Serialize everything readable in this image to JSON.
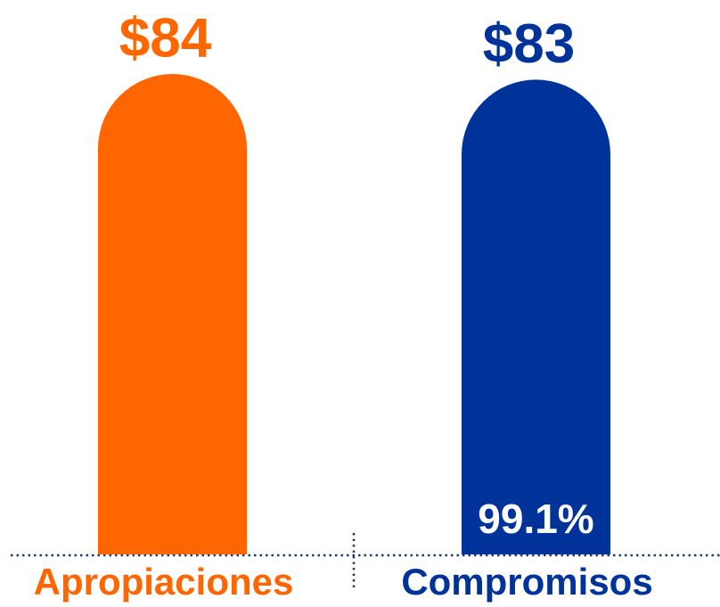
{
  "chart_data": {
    "type": "bar",
    "categories": [
      "Apropiaciones",
      "Compromisos"
    ],
    "values": [
      84,
      83
    ],
    "value_labels": [
      "$84",
      "$83"
    ],
    "colors": [
      "#ff6600",
      "#003399"
    ],
    "annotation": "99.1%",
    "ylim": [
      0,
      84
    ]
  }
}
